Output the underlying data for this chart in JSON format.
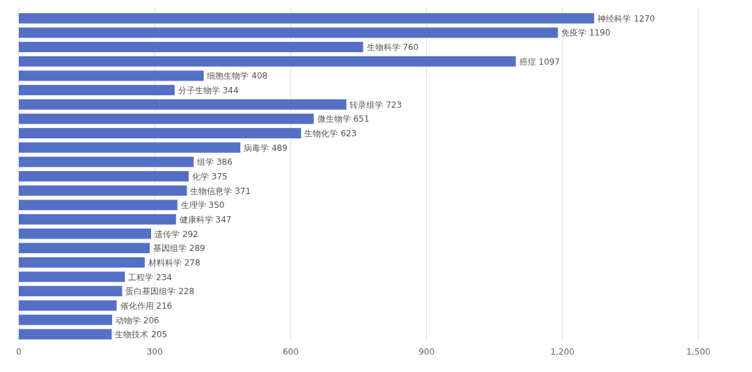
{
  "chart_data": {
    "type": "bar",
    "orientation": "horizontal",
    "grid": "x",
    "color": "#5470c6",
    "categories": [
      "神经科学 1270",
      "免疫学 1190",
      "生物科学 760",
      "癌症 1097",
      "细胞生物学 408",
      "分子生物学 344",
      "转录组学 723",
      "微生物学 651",
      "生物化学 623",
      "病毒学 489",
      "组学 386",
      "化学 375",
      "生物信息学 371",
      "生理学 350",
      "健康科学 347",
      "遗传学 292",
      "基因组学 289",
      "材料科学 278",
      "工程学 234",
      "蛋白基因组学 228",
      "催化作用 216",
      "动物学 206",
      "生物技术 205"
    ],
    "values": [
      1270,
      1190,
      760,
      1097,
      408,
      344,
      723,
      651,
      623,
      489,
      386,
      375,
      371,
      350,
      347,
      292,
      289,
      278,
      234,
      228,
      216,
      206,
      205
    ],
    "xlim": [
      0,
      1500
    ],
    "xticks": [
      0,
      300,
      600,
      900,
      {
        "value": 1200,
        "label": "1,200"
      },
      {
        "value": 1500,
        "label": "1,500"
      }
    ]
  }
}
